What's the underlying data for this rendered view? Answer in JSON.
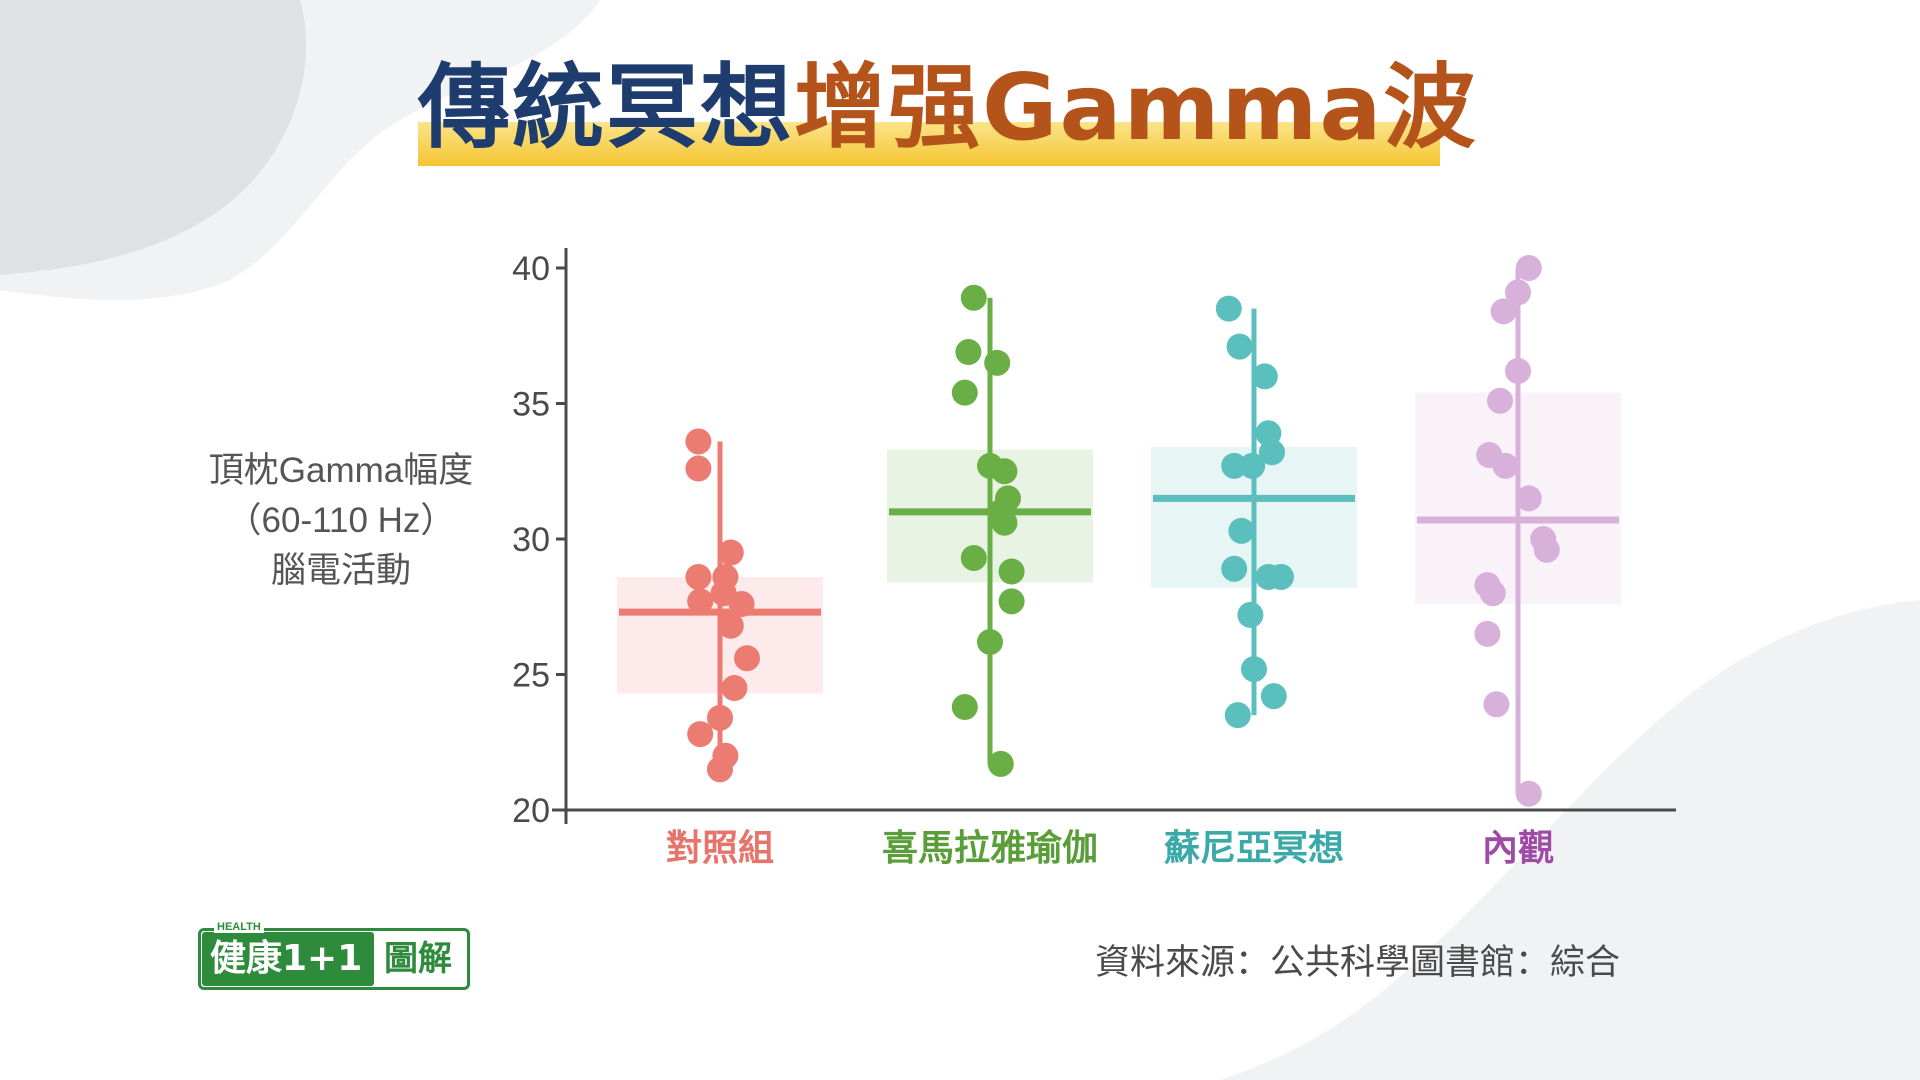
{
  "title": {
    "part1": "傳統冥想",
    "part2": "增强Gamma波"
  },
  "colors": {
    "title_dark_blue": "#1f3c6e",
    "title_rust": "#b5541a",
    "title_highlight": "#f4c531",
    "axis": "#4a4a4a",
    "logo_green": "#2e8b3c"
  },
  "chart_data": {
    "type": "scatter",
    "subtype": "jittered strip plot with mean line, box range band and whisker line per group",
    "ylabel_lines": [
      "頂枕Gamma幅度",
      "（60-110 Hz）",
      "腦電活動"
    ],
    "ylim": [
      20,
      40
    ],
    "yticks": [
      20,
      25,
      30,
      35,
      40
    ],
    "grid": false,
    "legend": "none",
    "categories": [
      "對照組",
      "喜馬拉雅瑜伽",
      "蘇尼亞冥想",
      "內觀"
    ],
    "series": [
      {
        "name": "對照組",
        "color": "#ec7b72",
        "label_color": "#e8736a",
        "mean": 27.3,
        "band": [
          24.3,
          28.6
        ],
        "whisker": [
          21.5,
          33.6
        ],
        "points": [
          {
            "y": 33.6,
            "j": -0.6
          },
          {
            "y": 32.6,
            "j": -0.6
          },
          {
            "y": 29.5,
            "j": 0.3
          },
          {
            "y": 28.6,
            "j": -0.6
          },
          {
            "y": 28.6,
            "j": 0.15
          },
          {
            "y": 28.0,
            "j": 0.1
          },
          {
            "y": 27.7,
            "j": -0.55
          },
          {
            "y": 27.6,
            "j": 0.6
          },
          {
            "y": 26.8,
            "j": 0.3
          },
          {
            "y": 25.6,
            "j": 0.75
          },
          {
            "y": 24.5,
            "j": 0.4
          },
          {
            "y": 23.4,
            "j": 0.0
          },
          {
            "y": 22.8,
            "j": -0.55
          },
          {
            "y": 22.0,
            "j": 0.15
          },
          {
            "y": 21.5,
            "j": 0.0
          }
        ]
      },
      {
        "name": "喜馬拉雅瑜伽",
        "color": "#6aaf45",
        "label_color": "#5a9e3a",
        "mean": 31.0,
        "band": [
          28.4,
          33.3
        ],
        "whisker": [
          21.7,
          38.9
        ],
        "points": [
          {
            "y": 38.9,
            "j": -0.45
          },
          {
            "y": 36.9,
            "j": -0.6
          },
          {
            "y": 36.5,
            "j": 0.2
          },
          {
            "y": 35.4,
            "j": -0.7
          },
          {
            "y": 32.7,
            "j": 0.0
          },
          {
            "y": 32.5,
            "j": 0.4
          },
          {
            "y": 31.5,
            "j": 0.5
          },
          {
            "y": 31.0,
            "j": 0.3
          },
          {
            "y": 30.6,
            "j": 0.4
          },
          {
            "y": 29.3,
            "j": -0.45
          },
          {
            "y": 28.8,
            "j": 0.6
          },
          {
            "y": 27.7,
            "j": 0.6
          },
          {
            "y": 26.2,
            "j": 0.0
          },
          {
            "y": 23.8,
            "j": -0.7
          },
          {
            "y": 21.7,
            "j": 0.3
          }
        ]
      },
      {
        "name": "蘇尼亞冥想",
        "color": "#5bbfbe",
        "label_color": "#3aa9a8",
        "mean": 31.5,
        "band": [
          28.2,
          33.4
        ],
        "whisker": [
          23.5,
          38.5
        ],
        "points": [
          {
            "y": 38.5,
            "j": -0.7
          },
          {
            "y": 37.1,
            "j": -0.4
          },
          {
            "y": 36.0,
            "j": 0.3
          },
          {
            "y": 33.9,
            "j": 0.4
          },
          {
            "y": 33.2,
            "j": 0.5
          },
          {
            "y": 32.7,
            "j": -0.55
          },
          {
            "y": 32.7,
            "j": -0.05
          },
          {
            "y": 30.3,
            "j": -0.35
          },
          {
            "y": 28.9,
            "j": -0.55
          },
          {
            "y": 28.6,
            "j": 0.4
          },
          {
            "y": 28.6,
            "j": 0.75
          },
          {
            "y": 27.2,
            "j": -0.1
          },
          {
            "y": 25.2,
            "j": 0.0
          },
          {
            "y": 24.2,
            "j": 0.55
          },
          {
            "y": 23.5,
            "j": -0.45
          }
        ]
      },
      {
        "name": "內觀",
        "color": "#d8b1da",
        "label_color": "#a04aa8",
        "mean": 30.7,
        "band": [
          27.6,
          35.4
        ],
        "whisker": [
          20.6,
          40.0
        ],
        "points": [
          {
            "y": 40.0,
            "j": 0.3
          },
          {
            "y": 39.1,
            "j": 0.0
          },
          {
            "y": 38.4,
            "j": -0.4
          },
          {
            "y": 36.2,
            "j": 0.0
          },
          {
            "y": 35.1,
            "j": -0.5
          },
          {
            "y": 33.1,
            "j": -0.8
          },
          {
            "y": 32.7,
            "j": -0.35
          },
          {
            "y": 31.5,
            "j": 0.3
          },
          {
            "y": 30.0,
            "j": 0.7
          },
          {
            "y": 29.6,
            "j": 0.8
          },
          {
            "y": 28.3,
            "j": -0.85
          },
          {
            "y": 28.0,
            "j": -0.7
          },
          {
            "y": 26.5,
            "j": -0.85
          },
          {
            "y": 23.9,
            "j": -0.6
          },
          {
            "y": 20.6,
            "j": 0.3
          }
        ]
      }
    ]
  },
  "logo": {
    "health": "HEALTH",
    "main": "健康1+1",
    "sub": "圖解"
  },
  "source": "資料來源：公共科學圖書館：綜合"
}
